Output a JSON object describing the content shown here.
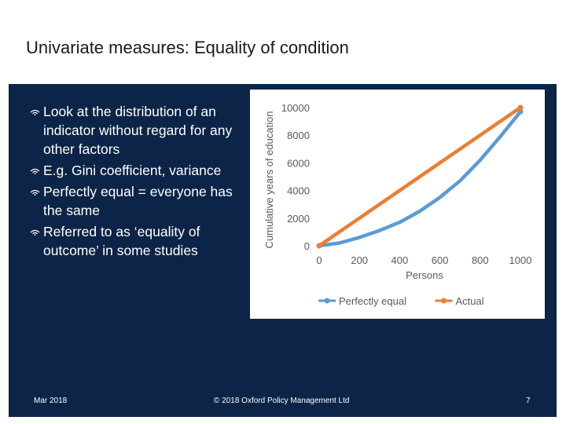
{
  "slide": {
    "title": "Univariate measures: Equality of condition",
    "bullets": [
      "Look at the distribution of an indicator without regard for any other factors",
      "E.g. Gini coefficient, variance",
      "Perfectly equal = everyone has the same",
      "Referred to as ‘equality of outcome’ in some studies"
    ],
    "bullet_icon": "wifi-signal-icon",
    "panel_color": "#0b2447"
  },
  "footer": {
    "date": "Mar 2018",
    "copyright": "© 2018 Oxford Policy Management Ltd",
    "page_number": "7"
  },
  "chart_data": {
    "type": "line",
    "title": "",
    "xlabel": "Persons",
    "ylabel": "Cumulative years of education",
    "xlim": [
      0,
      1000
    ],
    "ylim": [
      0,
      10000
    ],
    "x_ticks": [
      "0",
      "200",
      "400",
      "600",
      "800",
      "1000"
    ],
    "y_ticks": [
      "0",
      "2000",
      "4000",
      "6000",
      "8000",
      "10000"
    ],
    "grid": false,
    "legend_position": "bottom",
    "series": [
      {
        "name": "Perfectly equal",
        "color": "#5b9bd5",
        "x": [
          0,
          100,
          200,
          300,
          400,
          500,
          600,
          700,
          800,
          900,
          1000
        ],
        "y": [
          0,
          200,
          600,
          1100,
          1700,
          2500,
          3500,
          4700,
          6200,
          7900,
          9700
        ]
      },
      {
        "name": "Actual",
        "color": "#ed7d31",
        "x": [
          0,
          200,
          400,
          600,
          800,
          1000
        ],
        "y": [
          0,
          2000,
          4000,
          6000,
          8000,
          10000
        ]
      }
    ]
  }
}
